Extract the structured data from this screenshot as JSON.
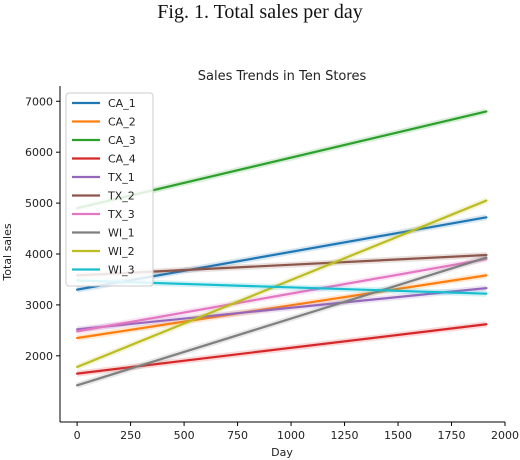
{
  "figure": {
    "caption": "Fig. 1.  Total sales per day"
  },
  "chart_data": {
    "type": "line",
    "title": "Sales Trends in Ten Stores",
    "xlabel": "Day",
    "ylabel": "Total sales",
    "xlim": [
      -80,
      2000
    ],
    "ylim": [
      700,
      7300
    ],
    "xticks": [
      0,
      250,
      500,
      750,
      1000,
      1250,
      1500,
      1750,
      2000
    ],
    "yticks": [
      2000,
      3000,
      4000,
      5000,
      6000,
      7000
    ],
    "grid": false,
    "legend_position": "top-left",
    "series": [
      {
        "name": "CA_1",
        "color": "#1f77b4",
        "x": [
          0,
          1913
        ],
        "y": [
          3300,
          4720
        ]
      },
      {
        "name": "CA_2",
        "color": "#ff7f0e",
        "x": [
          0,
          1913
        ],
        "y": [
          2350,
          3580
        ]
      },
      {
        "name": "CA_3",
        "color": "#2ca02c",
        "x": [
          0,
          1913
        ],
        "y": [
          4900,
          6800
        ]
      },
      {
        "name": "CA_4",
        "color": "#d62728",
        "x": [
          0,
          1913
        ],
        "y": [
          1650,
          2620
        ]
      },
      {
        "name": "TX_1",
        "color": "#9467bd",
        "x": [
          0,
          1913
        ],
        "y": [
          2520,
          3330
        ]
      },
      {
        "name": "TX_2",
        "color": "#8c564b",
        "x": [
          0,
          1913
        ],
        "y": [
          3580,
          3980
        ]
      },
      {
        "name": "TX_3",
        "color": "#e377c2",
        "x": [
          0,
          1913
        ],
        "y": [
          2480,
          3900
        ]
      },
      {
        "name": "WI_1",
        "color": "#7f7f7f",
        "x": [
          0,
          1913
        ],
        "y": [
          1420,
          3930
        ]
      },
      {
        "name": "WI_2",
        "color": "#bcbd22",
        "x": [
          0,
          1913
        ],
        "y": [
          1780,
          5050
        ]
      },
      {
        "name": "WI_3",
        "color": "#17becf",
        "x": [
          0,
          1913
        ],
        "y": [
          3480,
          3220
        ]
      }
    ]
  }
}
